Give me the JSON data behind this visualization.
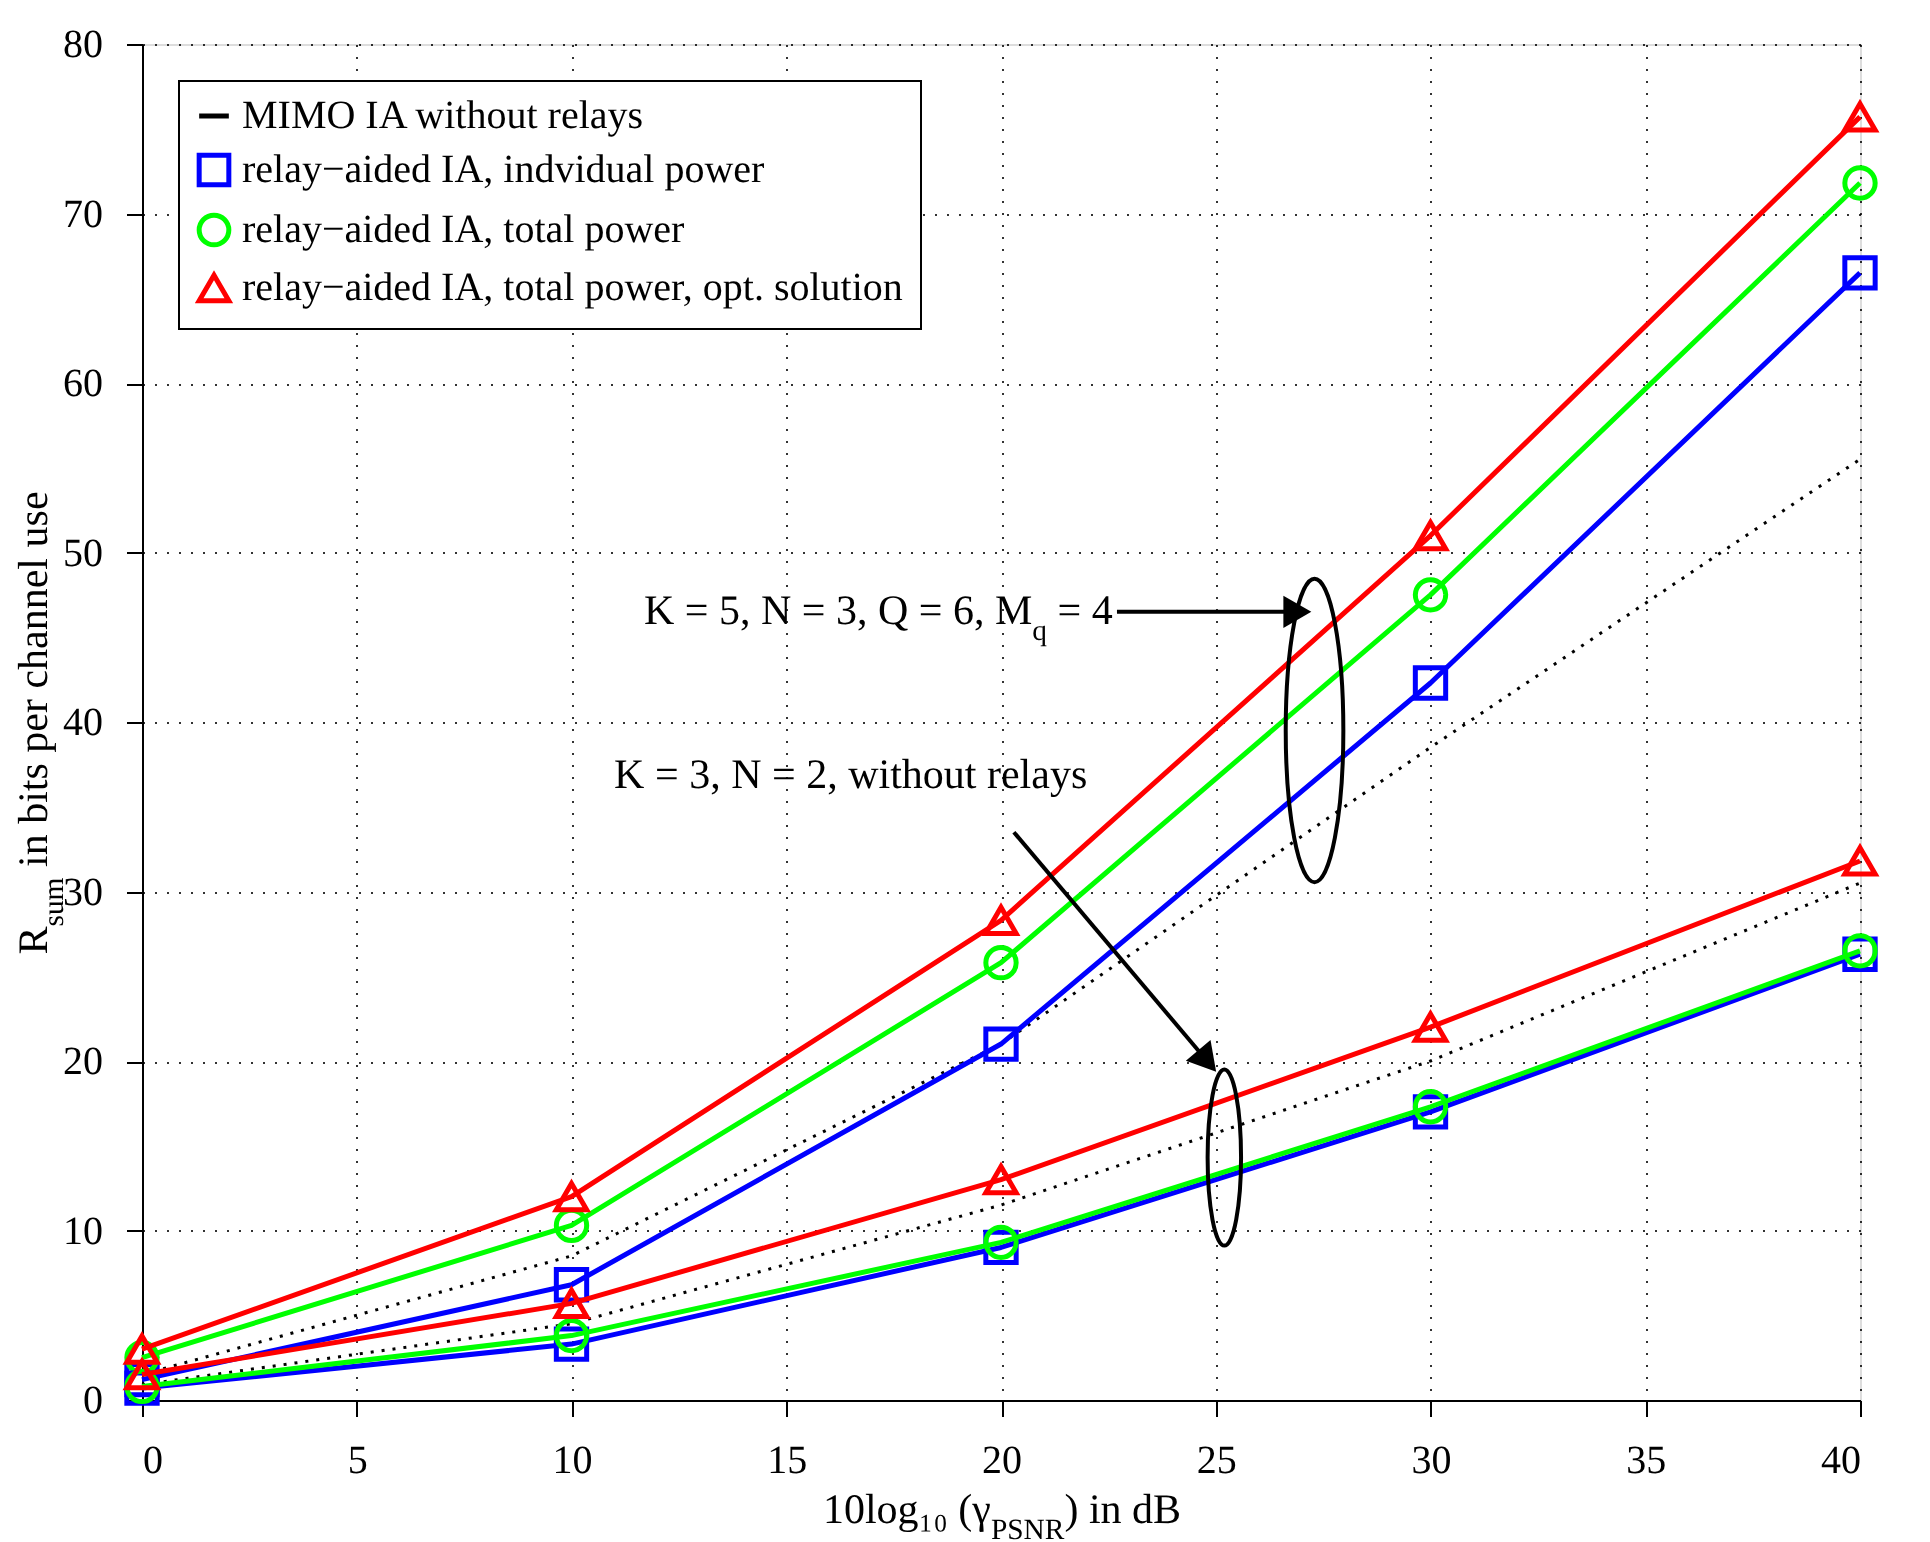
{
  "chart_data": {
    "type": "line",
    "xlabel": "10log₁₀ (γ$_{PSNR}$) in dB",
    "ylabel": "R$_{sum}$ in bits per channel use",
    "x": [
      0,
      10,
      20,
      30,
      40
    ],
    "xlim": [
      0,
      40
    ],
    "xticks": [
      0,
      5,
      10,
      15,
      20,
      25,
      30,
      35,
      40
    ],
    "ylim": [
      0,
      80
    ],
    "yticks": [
      0,
      10,
      20,
      30,
      40,
      50,
      60,
      70,
      80
    ],
    "grid": true,
    "legend": "top left",
    "series": [
      {
        "name": "MIMO IA without relays",
        "color": "#000000",
        "values": [
          1.5,
          8.5,
          21,
          38.5,
          55.5
        ],
        "marker": "none",
        "line_style": "dotted"
      },
      {
        "name": "relay−aided IA, indvidual power",
        "color": "#0000ff",
        "values": [
          1.2,
          6.8,
          21,
          42.3,
          66.5
        ],
        "marker": "square",
        "line_style": "solid"
      },
      {
        "name": "relay−aided IA, total power",
        "color": "#00ff00",
        "values": [
          2.5,
          10.3,
          25.8,
          47.5,
          71.8
        ],
        "marker": "circle",
        "line_style": "solid"
      },
      {
        "name": "relay−aided IA, total power, opt. solution",
        "color": "#ff0000",
        "values": [
          3,
          12,
          28.3,
          51,
          75.7
        ],
        "marker": "triangle",
        "line_style": "solid"
      },
      {
        "color": "#000000",
        "values": [
          0.9,
          4.5,
          11.5,
          20,
          30.5
        ],
        "marker": "none",
        "line_style": "dotted"
      },
      {
        "color": "#0000ff",
        "values": [
          0.7,
          3.3,
          9,
          17,
          26.3
        ],
        "marker": "square",
        "line_style": "solid"
      },
      {
        "color": "#00ff00",
        "values": [
          0.8,
          3.8,
          9.3,
          17.3,
          26.5
        ],
        "marker": "circle",
        "line_style": "solid"
      },
      {
        "color": "#ff0000",
        "values": [
          1.5,
          5.7,
          13,
          22,
          31.8
        ],
        "marker": "triangle",
        "line_style": "solid"
      }
    ],
    "annotations": [
      "K = 5, N = 3, Q = 6, M$_{q}$ = 4",
      "K = 3, N = 2, without relays"
    ]
  }
}
